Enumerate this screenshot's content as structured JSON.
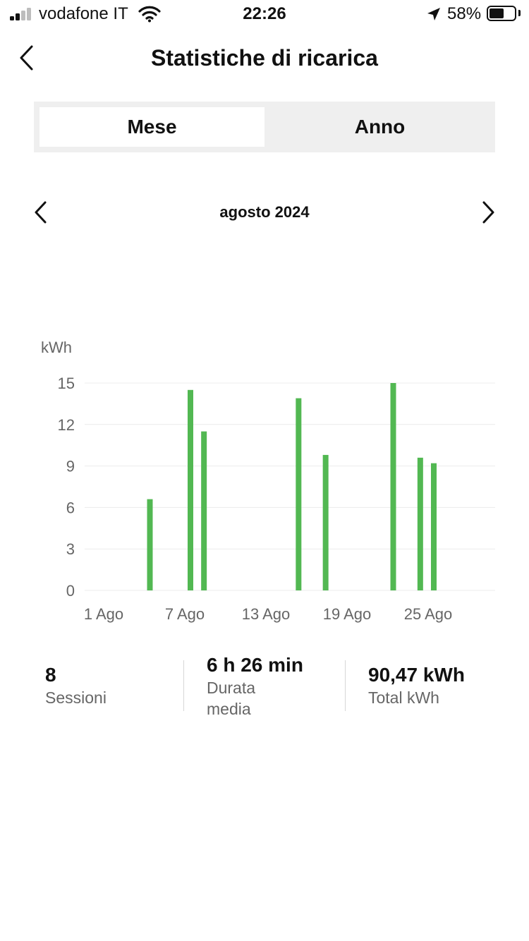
{
  "status_bar": {
    "carrier": "vodafone IT",
    "time": "22:26",
    "battery_percent": "58%",
    "battery_level": 0.58
  },
  "header": {
    "title": "Statistiche di ricarica",
    "back_icon": "chevron-left-icon"
  },
  "segmented": {
    "month_label": "Mese",
    "year_label": "Anno",
    "selected": "Mese"
  },
  "month_nav": {
    "label": "agosto 2024",
    "prev_icon": "chevron-left-icon",
    "next_icon": "chevron-right-icon"
  },
  "chart_data": {
    "type": "bar",
    "ylabel": "kWh",
    "yticks": [
      0,
      3,
      6,
      9,
      12,
      15
    ],
    "ylim": [
      0,
      15
    ],
    "xlim": [
      1,
      31
    ],
    "xticks": [
      1,
      7,
      13,
      19,
      25
    ],
    "xtick_labels": [
      "1 Ago",
      "7 Ago",
      "13 Ago",
      "19 Ago",
      "25 Ago"
    ],
    "grid": true,
    "bar_color": "#52b852",
    "bars": [
      {
        "day": 4,
        "value": 6.6
      },
      {
        "day": 7,
        "value": 14.5
      },
      {
        "day": 8,
        "value": 11.5
      },
      {
        "day": 15,
        "value": 13.9
      },
      {
        "day": 17,
        "value": 9.8
      },
      {
        "day": 22,
        "value": 15.0
      },
      {
        "day": 24,
        "value": 9.6
      },
      {
        "day": 25,
        "value": 9.2
      }
    ]
  },
  "stats": {
    "sessions": {
      "value": "8",
      "label": "Sessioni"
    },
    "avg_duration": {
      "value": "6 h 26 min",
      "label_line1": "Durata",
      "label_line2": "media"
    },
    "total_kwh": {
      "value": "90,47 kWh",
      "label": "Total kWh"
    }
  }
}
